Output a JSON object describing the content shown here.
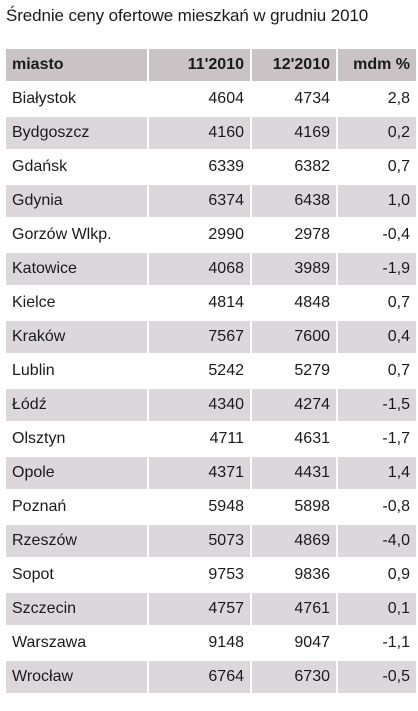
{
  "title": "Średnie ceny ofertowe mieszkań w grudniu 2010",
  "table": {
    "headers": [
      "miasto",
      "11'2010",
      "12'2010",
      "mdm %"
    ],
    "rows": [
      [
        "Białystok",
        "4604",
        "4734",
        "2,8"
      ],
      [
        "Bydgoszcz",
        "4160",
        "4169",
        "0,2"
      ],
      [
        "Gdańsk",
        "6339",
        "6382",
        "0,7"
      ],
      [
        "Gdynia",
        "6374",
        "6438",
        "1,0"
      ],
      [
        "Gorzów Wlkp.",
        "2990",
        "2978",
        "-0,4"
      ],
      [
        "Katowice",
        "4068",
        "3989",
        "-1,9"
      ],
      [
        "Kielce",
        "4814",
        "4848",
        "0,7"
      ],
      [
        "Kraków",
        "7567",
        "7600",
        "0,4"
      ],
      [
        "Lublin",
        "5242",
        "5279",
        "0,7"
      ],
      [
        "Łódź",
        "4340",
        "4274",
        "-1,5"
      ],
      [
        "Olsztyn",
        "4711",
        "4631",
        "-1,7"
      ],
      [
        "Opole",
        "4371",
        "4431",
        "1,4"
      ],
      [
        "Poznań",
        "5948",
        "5898",
        "-0,8"
      ],
      [
        "Rzeszów",
        "5073",
        "4869",
        "-4,0"
      ],
      [
        "Sopot",
        "9753",
        "9836",
        "0,9"
      ],
      [
        "Szczecin",
        "4757",
        "4761",
        "0,1"
      ],
      [
        "Warszawa",
        "9148",
        "9047",
        "-1,1"
      ],
      [
        "Wrocław",
        "6764",
        "6730",
        "-0,5"
      ]
    ]
  },
  "colors": {
    "header_bg": "#c9c3c6",
    "alt_row_bg": "#dcd7da",
    "row_bg": "#ffffff"
  }
}
